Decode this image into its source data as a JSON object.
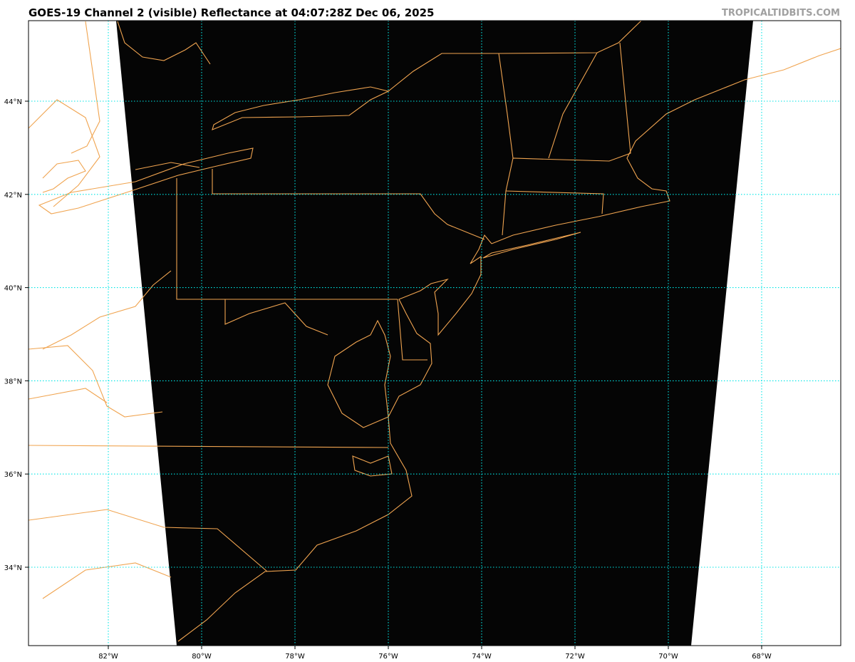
{
  "header": {
    "title": "GOES-19 Channel 2 (visible) Reflectance at 04:07:28Z Dec 06, 2025",
    "watermark": "TROPICALTIDBITS.COM"
  },
  "map": {
    "satellite": "GOES-19",
    "channel": "Channel 2 (visible)",
    "product": "Reflectance",
    "valid_time": "04:07:28Z Dec 06, 2025",
    "region": "US East Coast / Mid-Atlantic / Northeast",
    "background_color": "#000000",
    "coastline_color": "#f0a450",
    "grid_color": "#00e5e5",
    "lat_labels": [
      "44°N",
      "42°N",
      "40°N",
      "38°N",
      "36°N",
      "34°N"
    ],
    "lon_labels": [
      "82°W",
      "80°W",
      "78°W",
      "76°W",
      "74°W",
      "72°W",
      "70°W",
      "68°W"
    ]
  }
}
